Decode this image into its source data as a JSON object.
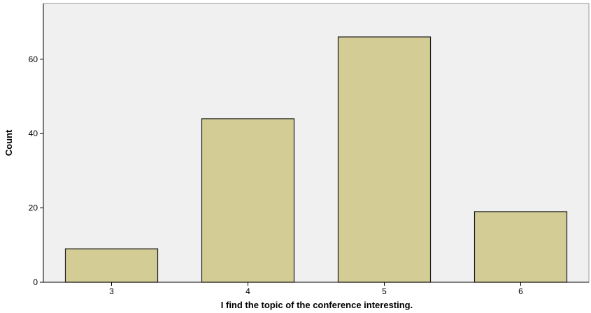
{
  "chart_data": {
    "type": "bar",
    "categories": [
      "3",
      "4",
      "5",
      "6"
    ],
    "values": [
      9,
      44,
      66,
      19
    ],
    "xlabel": "I find the topic of the conference interesting.",
    "ylabel": "Count",
    "ylim": [
      0,
      75
    ],
    "yticks": [
      "0",
      "20",
      "40",
      "60"
    ],
    "grid": false,
    "legend": "none",
    "colors": {
      "bar_fill": "#d3cd95",
      "bar_stroke": "#1a1a1a",
      "plot_background": "#f0f0f0",
      "axis": "#000000"
    }
  }
}
